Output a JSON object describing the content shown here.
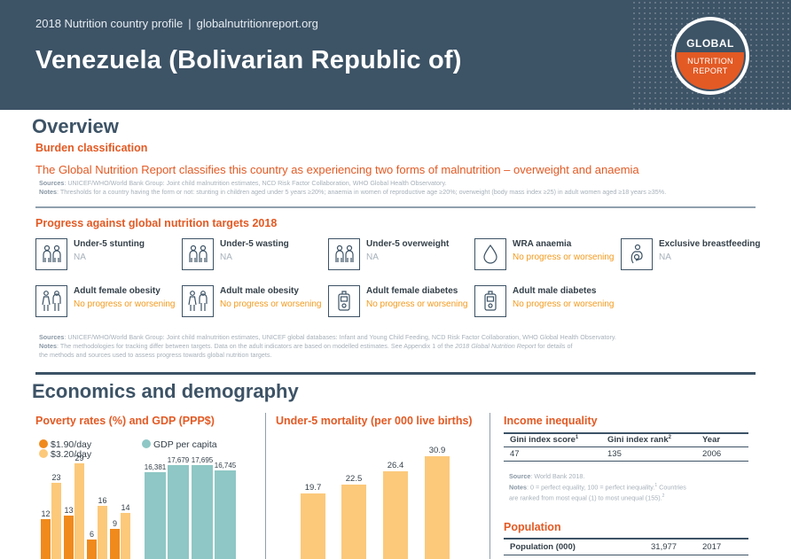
{
  "header": {
    "subtitle": "2018 Nutrition country profile",
    "site": "globalnutritionreport.org",
    "country": "Venezuela (Bolivarian Republic of)",
    "logo_top": "GLOBAL",
    "logo_mid": "NUTRITION",
    "logo_bot": "REPORT"
  },
  "overview": {
    "title": "Overview",
    "burden_title": "Burden classification",
    "burden_text": "The Global Nutrition Report classifies this country as experiencing two forms of malnutrition – overweight and anaemia",
    "sources_label": "Sources",
    "sources_text": ": UNICEF/WHO/World Bank Group: Joint child malnutrition estimates, NCD Risk Factor Collaboration, WHO Global Health Observatory.",
    "notes_label": "Notes",
    "notes_text": ": Thresholds for a country having the form or not: stunting in children aged under 5 years ≥20%; anaemia in women of reproductive age ≥20%; overweight (body mass index ≥25) in adult women aged ≥18 years ≥35%."
  },
  "progress": {
    "title": "Progress against global nutrition targets 2018",
    "indicators": [
      {
        "label": "Under-5 stunting",
        "status": "NA"
      },
      {
        "label": "Under-5 wasting",
        "status": "NA"
      },
      {
        "label": "Under-5 overweight",
        "status": "NA"
      },
      {
        "label": "WRA anaemia",
        "status": "No progress or worsening"
      },
      {
        "label": "Exclusive breastfeeding",
        "status": "NA"
      },
      {
        "label": "Adult female obesity",
        "status": "No progress or worsening"
      },
      {
        "label": "Adult male obesity",
        "status": "No progress or worsening"
      },
      {
        "label": "Adult female diabetes",
        "status": "No progress or worsening"
      },
      {
        "label": "Adult male diabetes",
        "status": "No progress or worsening"
      }
    ],
    "sources_label": "Sources",
    "sources_text": ": UNICEF/WHO/World Bank Group: Joint child malnutrition estimates, UNICEF global databases: Infant and Young Child Feeding, NCD Risk Factor Collaboration, WHO Global Health Observatory.",
    "notes_label": "Notes",
    "notes_text1": ": The methodologies for tracking differ between targets. Data on the adult indicators are based on modelled estimates. See Appendix 1 of the ",
    "notes_italic": "2018 Global Nutrition Report",
    "notes_text2": " for details of",
    "notes_text3": "the methods and sources used to assess progress towards global nutrition targets."
  },
  "econ": {
    "title": "Economics and demography",
    "poverty_title": "Poverty rates (%) and GDP (PPP$)",
    "mortality_title": "Under-5 mortality (per 000 live births)",
    "income_title": "Income inequality",
    "population_title": "Population"
  },
  "colors": {
    "orange": "#e35a24",
    "navy": "#3d5366",
    "series_190": "#f08a1c",
    "series_320": "#fcc97a",
    "gdp": "#8ec7c5",
    "status_no": "#f49a1c"
  },
  "chart_data": [
    {
      "type": "bar",
      "title": "Poverty rates (%) and GDP (PPP$)",
      "categories": [
        "",
        "",
        "",
        ""
      ],
      "series": [
        {
          "name": "$1.90/day",
          "values": [
            12,
            13,
            6,
            9
          ]
        },
        {
          "name": "$3.20/day",
          "values": [
            23,
            29,
            16,
            14
          ]
        }
      ],
      "series_labels": [
        [
          "12",
          "13",
          "6",
          "9"
        ],
        [
          "23",
          "29",
          "16",
          "14"
        ]
      ],
      "ylim": [
        0,
        30
      ]
    },
    {
      "type": "bar",
      "title": "",
      "categories": [
        "",
        "",
        "",
        ""
      ],
      "series": [
        {
          "name": "GDP per capita",
          "values": [
            16381,
            17679,
            17695,
            16745
          ]
        }
      ],
      "value_labels": [
        "16,381",
        "17,679",
        "17,695",
        "16,745"
      ],
      "ylim": [
        0,
        18000
      ]
    },
    {
      "type": "bar",
      "title": "Under-5 mortality (per 000 live births)",
      "categories": [
        "",
        "",
        "",
        ""
      ],
      "values": [
        19.7,
        22.5,
        26.4,
        30.9
      ],
      "value_labels": [
        "19.7",
        "22.5",
        "26.4",
        "30.9"
      ],
      "ylim": [
        0,
        32
      ]
    }
  ],
  "income": {
    "headers": [
      "Gini index score",
      "Gini index rank",
      "Year"
    ],
    "sup1": "1",
    "sup2": "2",
    "values": [
      "47",
      "135",
      "2006"
    ],
    "source_label": "Source",
    "source_text": ": World Bank 2018.",
    "notes_label": "Notes",
    "notes_text1": ": 0 = perfect equality, 100 = perfect inequality.",
    "notes_text1b": " Countries",
    "notes_text2": "are ranked from most equal (1) to most unequal (155).",
    "notes_sup1": "1",
    "notes_sup2": "2"
  },
  "population": {
    "label": "Population (000)",
    "value": "31,977",
    "year": "2017"
  }
}
